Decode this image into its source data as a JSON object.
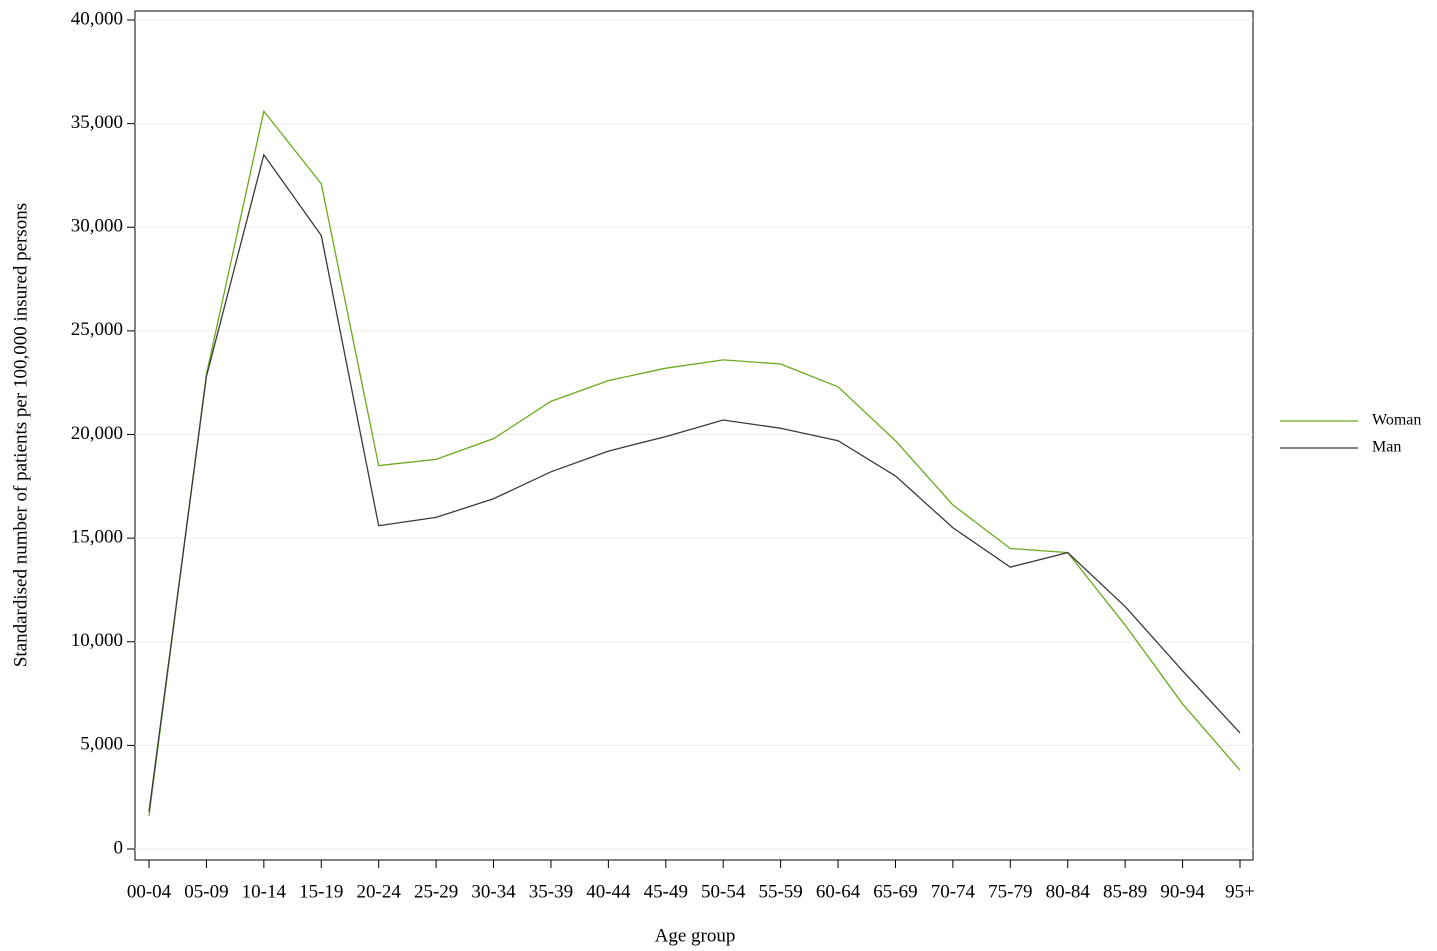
{
  "chart_data": {
    "type": "line",
    "x_label": "Age group",
    "y_label": "Standardised number of patients per 100,000 insured persons",
    "categories": [
      "00-04",
      "05-09",
      "10-14",
      "15-19",
      "20-24",
      "25-29",
      "30-34",
      "35-39",
      "40-44",
      "45-49",
      "50-54",
      "55-59",
      "60-64",
      "65-69",
      "70-74",
      "75-79",
      "80-84",
      "85-89",
      "90-94",
      "95+"
    ],
    "series": [
      {
        "name": "Woman",
        "color": "#6aaa1e",
        "values": [
          1600,
          22900,
          35600,
          32100,
          18500,
          18800,
          19800,
          21600,
          22600,
          23200,
          23600,
          23400,
          22300,
          19700,
          16600,
          14500,
          14300,
          10800,
          7000,
          3800
        ]
      },
      {
        "name": "Man",
        "color": "#3a3a3a",
        "values": [
          1800,
          22800,
          33500,
          29600,
          15600,
          16000,
          16900,
          18200,
          19200,
          19900,
          20700,
          20300,
          19700,
          18000,
          15500,
          13600,
          14300,
          11700,
          8600,
          5600
        ]
      }
    ],
    "ylim": [
      0,
      40000
    ],
    "yticks": [
      0,
      {
        "value": 5000,
        "label": "5,000"
      },
      {
        "value": 10000,
        "label": "10,000"
      },
      {
        "value": 15000,
        "label": "15,000"
      },
      {
        "value": 20000,
        "label": "20,000"
      },
      {
        "value": 25000,
        "label": "25,000"
      },
      {
        "value": 30000,
        "label": "30,000"
      },
      {
        "value": 35000,
        "label": "35,000"
      },
      {
        "value": 40000,
        "label": "40,000"
      }
    ],
    "grid": true,
    "legend": "right"
  }
}
